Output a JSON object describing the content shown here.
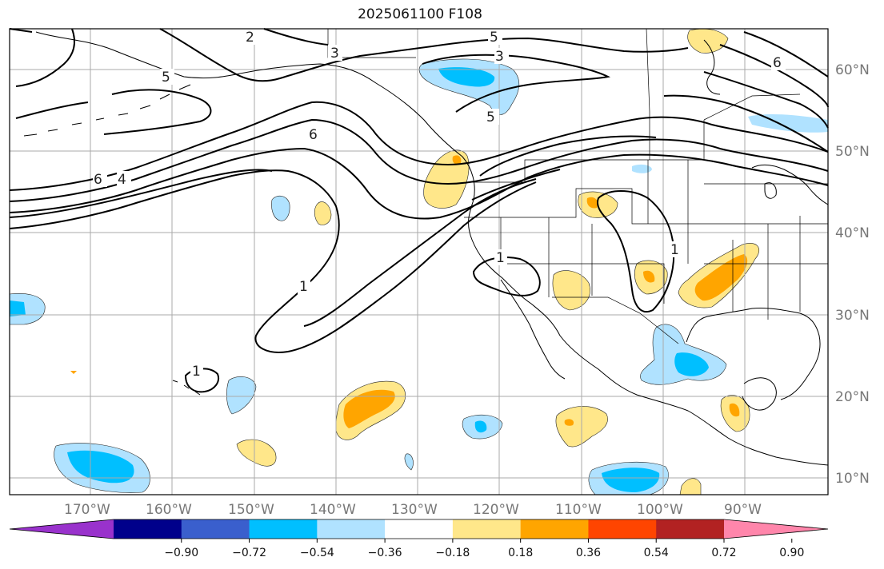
{
  "title": "2025061100 F108",
  "map": {
    "lon_labels": [
      "170°W",
      "160°W",
      "150°W",
      "140°W",
      "130°W",
      "120°W",
      "110°W",
      "100°W",
      "90°W"
    ],
    "lat_labels": [
      "60°N",
      "50°N",
      "40°N",
      "30°N",
      "20°N",
      "10°N"
    ],
    "grid": true
  },
  "contour_labels": [
    "2",
    "5",
    "3",
    "3",
    "5",
    "6",
    "5",
    "6",
    "4",
    "6",
    "1",
    "1",
    "1",
    "1"
  ],
  "colorbar": {
    "ticks": [
      "−0.90",
      "−0.72",
      "−0.54",
      "−0.36",
      "−0.18",
      "0.18",
      "0.36",
      "0.54",
      "0.72",
      "0.90"
    ],
    "colors": [
      "#9932cc",
      "#00008b",
      "#3a5fcd",
      "#00bfff",
      "#b0e2ff",
      "#ffffff",
      "#ffe78a",
      "#ffa500",
      "#ff4500",
      "#b22222",
      "#ff86ab"
    ],
    "extend": "both"
  }
}
